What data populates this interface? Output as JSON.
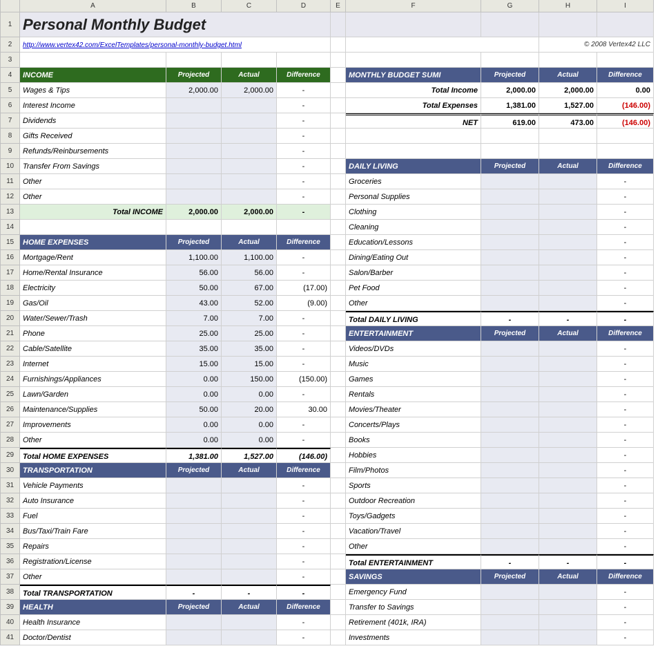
{
  "cols": [
    "A",
    "B",
    "C",
    "D",
    "E",
    "F",
    "G",
    "H",
    "I"
  ],
  "title": "Personal Monthly Budget",
  "link": "http://www.vertex42.com/ExcelTemplates/personal-monthly-budget.html",
  "copyright": "© 2008 Vertex42 LLC",
  "hdrs": {
    "proj": "Projected",
    "act": "Actual",
    "diff": "Difference"
  },
  "summary": {
    "header": "MONTHLY BUDGET SUMI",
    "rows": [
      {
        "label": "Total Income",
        "p": "2,000.00",
        "a": "2,000.00",
        "d": "0.00",
        "neg": false
      },
      {
        "label": "Total Expenses",
        "p": "1,381.00",
        "a": "1,527.00",
        "d": "(146.00)",
        "neg": true
      },
      {
        "label": "NET",
        "p": "619.00",
        "a": "473.00",
        "d": "(146.00)",
        "neg": true
      }
    ]
  },
  "income": {
    "header": "INCOME",
    "items": [
      {
        "n": "Wages & Tips",
        "p": "2,000.00",
        "a": "2,000.00",
        "d": "-"
      },
      {
        "n": "Interest Income",
        "p": "",
        "a": "",
        "d": "-"
      },
      {
        "n": "Dividends",
        "p": "",
        "a": "",
        "d": "-"
      },
      {
        "n": "Gifts Received",
        "p": "",
        "a": "",
        "d": "-"
      },
      {
        "n": "Refunds/Reinbursements",
        "p": "",
        "a": "",
        "d": "-"
      },
      {
        "n": "Transfer From Savings",
        "p": "",
        "a": "",
        "d": "-"
      },
      {
        "n": "Other",
        "p": "",
        "a": "",
        "d": "-"
      },
      {
        "n": "Other",
        "p": "",
        "a": "",
        "d": "-"
      }
    ],
    "total": {
      "label": "Total INCOME",
      "p": "2,000.00",
      "a": "2,000.00",
      "d": "-"
    }
  },
  "home": {
    "header": "HOME EXPENSES",
    "items": [
      {
        "n": "Mortgage/Rent",
        "p": "1,100.00",
        "a": "1,100.00",
        "d": "-"
      },
      {
        "n": "Home/Rental Insurance",
        "p": "56.00",
        "a": "56.00",
        "d": "-"
      },
      {
        "n": "Electricity",
        "p": "50.00",
        "a": "67.00",
        "d": "(17.00)"
      },
      {
        "n": "Gas/Oil",
        "p": "43.00",
        "a": "52.00",
        "d": "(9.00)"
      },
      {
        "n": "Water/Sewer/Trash",
        "p": "7.00",
        "a": "7.00",
        "d": "-"
      },
      {
        "n": "Phone",
        "p": "25.00",
        "a": "25.00",
        "d": "-"
      },
      {
        "n": "Cable/Satellite",
        "p": "35.00",
        "a": "35.00",
        "d": "-"
      },
      {
        "n": "Internet",
        "p": "15.00",
        "a": "15.00",
        "d": "-"
      },
      {
        "n": "Furnishings/Appliances",
        "p": "0.00",
        "a": "150.00",
        "d": "(150.00)"
      },
      {
        "n": "Lawn/Garden",
        "p": "0.00",
        "a": "0.00",
        "d": "-"
      },
      {
        "n": "Maintenance/Supplies",
        "p": "50.00",
        "a": "20.00",
        "d": "30.00"
      },
      {
        "n": "Improvements",
        "p": "0.00",
        "a": "0.00",
        "d": "-"
      },
      {
        "n": "Other",
        "p": "0.00",
        "a": "0.00",
        "d": "-"
      }
    ],
    "total": {
      "label": "Total HOME EXPENSES",
      "p": "1,381.00",
      "a": "1,527.00",
      "d": "(146.00)"
    }
  },
  "trans": {
    "header": "TRANSPORTATION",
    "items": [
      {
        "n": "Vehicle Payments",
        "p": "",
        "a": "",
        "d": "-"
      },
      {
        "n": "Auto Insurance",
        "p": "",
        "a": "",
        "d": "-"
      },
      {
        "n": "Fuel",
        "p": "",
        "a": "",
        "d": "-"
      },
      {
        "n": "Bus/Taxi/Train Fare",
        "p": "",
        "a": "",
        "d": "-"
      },
      {
        "n": "Repairs",
        "p": "",
        "a": "",
        "d": "-"
      },
      {
        "n": "Registration/License",
        "p": "",
        "a": "",
        "d": "-"
      },
      {
        "n": "Other",
        "p": "",
        "a": "",
        "d": "-"
      }
    ],
    "total": {
      "label": "Total TRANSPORTATION",
      "p": "-",
      "a": "-",
      "d": "-"
    }
  },
  "health": {
    "header": "HEALTH",
    "items": [
      {
        "n": "Health Insurance",
        "p": "",
        "a": "",
        "d": "-"
      },
      {
        "n": "Doctor/Dentist",
        "p": "",
        "a": "",
        "d": "-"
      }
    ]
  },
  "daily": {
    "header": "DAILY LIVING",
    "items": [
      {
        "n": "Groceries",
        "p": "",
        "a": "",
        "d": "-"
      },
      {
        "n": "Personal Supplies",
        "p": "",
        "a": "",
        "d": "-"
      },
      {
        "n": "Clothing",
        "p": "",
        "a": "",
        "d": "-"
      },
      {
        "n": "Cleaning",
        "p": "",
        "a": "",
        "d": "-"
      },
      {
        "n": "Education/Lessons",
        "p": "",
        "a": "",
        "d": "-"
      },
      {
        "n": "Dining/Eating Out",
        "p": "",
        "a": "",
        "d": "-"
      },
      {
        "n": "Salon/Barber",
        "p": "",
        "a": "",
        "d": "-"
      },
      {
        "n": "Pet Food",
        "p": "",
        "a": "",
        "d": "-"
      },
      {
        "n": "Other",
        "p": "",
        "a": "",
        "d": "-"
      }
    ],
    "total": {
      "label": "Total DAILY LIVING",
      "p": "-",
      "a": "-",
      "d": "-"
    }
  },
  "ent": {
    "header": "ENTERTAINMENT",
    "items": [
      {
        "n": "Videos/DVDs",
        "p": "",
        "a": "",
        "d": "-"
      },
      {
        "n": "Music",
        "p": "",
        "a": "",
        "d": "-"
      },
      {
        "n": "Games",
        "p": "",
        "a": "",
        "d": "-"
      },
      {
        "n": "Rentals",
        "p": "",
        "a": "",
        "d": "-"
      },
      {
        "n": "Movies/Theater",
        "p": "",
        "a": "",
        "d": "-"
      },
      {
        "n": "Concerts/Plays",
        "p": "",
        "a": "",
        "d": "-"
      },
      {
        "n": "Books",
        "p": "",
        "a": "",
        "d": "-"
      },
      {
        "n": "Hobbies",
        "p": "",
        "a": "",
        "d": "-"
      },
      {
        "n": "Film/Photos",
        "p": "",
        "a": "",
        "d": "-"
      },
      {
        "n": "Sports",
        "p": "",
        "a": "",
        "d": "-"
      },
      {
        "n": "Outdoor Recreation",
        "p": "",
        "a": "",
        "d": "-"
      },
      {
        "n": "Toys/Gadgets",
        "p": "",
        "a": "",
        "d": "-"
      },
      {
        "n": "Vacation/Travel",
        "p": "",
        "a": "",
        "d": "-"
      },
      {
        "n": "Other",
        "p": "",
        "a": "",
        "d": "-"
      }
    ],
    "total": {
      "label": "Total ENTERTAINMENT",
      "p": "-",
      "a": "-",
      "d": "-"
    }
  },
  "sav": {
    "header": "SAVINGS",
    "items": [
      {
        "n": "Emergency Fund",
        "p": "",
        "a": "",
        "d": "-"
      },
      {
        "n": "Transfer to Savings",
        "p": "",
        "a": "",
        "d": "-"
      },
      {
        "n": "Retirement (401k, IRA)",
        "p": "",
        "a": "",
        "d": "-"
      },
      {
        "n": "Investments",
        "p": "",
        "a": "",
        "d": "-"
      }
    ]
  },
  "colors": {
    "income_hdr": "#2e6b1f",
    "blue_hdr": "#4a5a8a",
    "title_bg": "#e8e8f0",
    "input_bg": "#e8eaf2",
    "total_inc_bg": "#dff0dc",
    "neg": "#cc0000"
  }
}
